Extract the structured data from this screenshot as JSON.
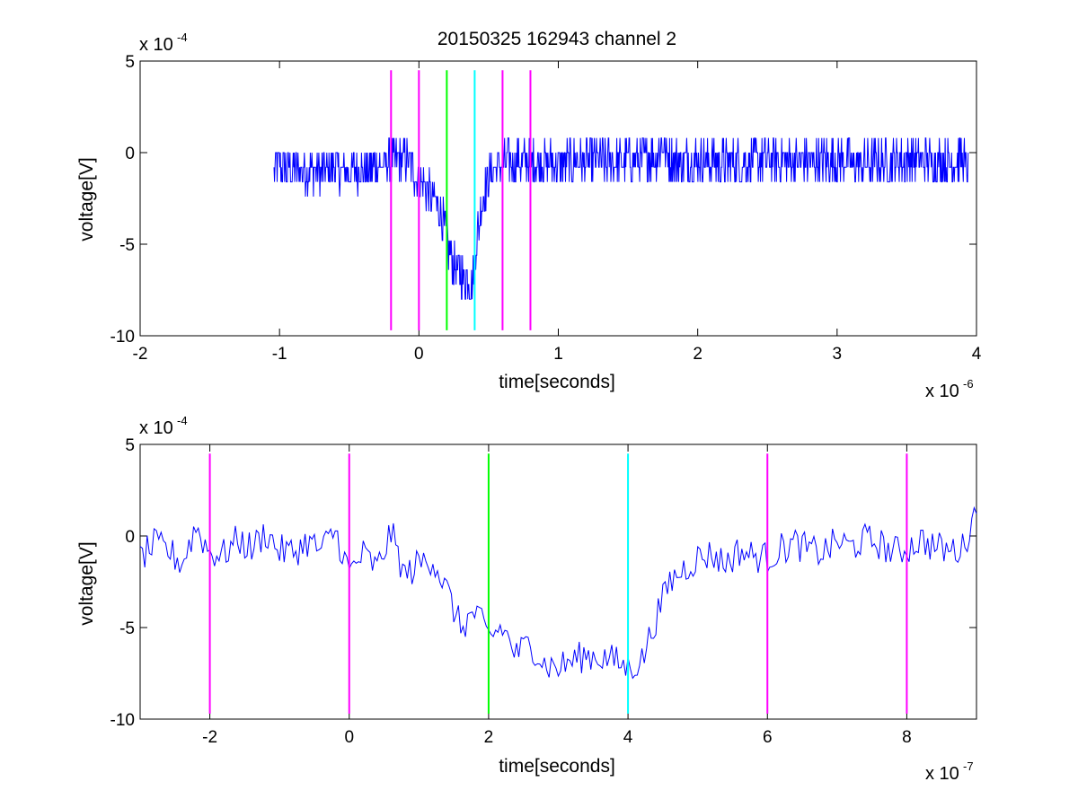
{
  "title": "20150325 162943 channel 2",
  "colors": {
    "trace": "#0000ff",
    "magenta": "#ff00ff",
    "green": "#00ff00",
    "cyan": "#00ffff",
    "axes": "#000000"
  },
  "chart_data": [
    {
      "type": "line",
      "title": "20150325 162943 channel 2",
      "xlabel": "time[seconds]",
      "ylabel": "voltage[V]",
      "x_exponent_label": "x 10",
      "x_exponent": "-6",
      "y_exponent_label": "x 10",
      "y_exponent": "-4",
      "xlim": [
        -2,
        4
      ],
      "ylim": [
        -10,
        5
      ],
      "x_ticks": [
        "-2",
        "-1",
        "0",
        "1",
        "2",
        "3",
        "4"
      ],
      "y_ticks": [
        "5",
        "0",
        "-5",
        "-10"
      ],
      "grid": false,
      "series": [
        {
          "color": "trace",
          "x": [
            -1.04,
            -1.0,
            -0.9,
            -0.8,
            -0.7,
            -0.6,
            -0.5,
            -0.4,
            -0.3,
            -0.2,
            -0.1,
            0.0,
            0.05,
            0.1,
            0.15,
            0.2,
            0.22,
            0.25,
            0.28,
            0.3,
            0.32,
            0.35,
            0.38,
            0.4,
            0.42,
            0.45,
            0.5,
            0.6,
            0.8,
            1.0,
            1.2,
            1.4,
            1.6,
            1.7,
            1.75,
            1.8,
            2.0,
            2.2,
            2.4,
            2.6,
            2.8,
            3.0,
            3.2,
            3.4,
            3.6,
            3.8,
            3.9,
            3.94
          ],
          "y": [
            -0.8,
            -0.8,
            -1.0,
            -0.9,
            -1.1,
            -0.8,
            -1.0,
            -0.9,
            -0.8,
            -0.5,
            -0.4,
            -1.4,
            -2.0,
            -2.5,
            -3.2,
            -4.5,
            -5.5,
            -6.0,
            -6.6,
            -6.5,
            -7.0,
            -6.8,
            -7.2,
            -6.0,
            -4.5,
            -3.0,
            -1.2,
            -0.5,
            -0.5,
            -0.6,
            -0.4,
            -0.5,
            -0.4,
            -0.2,
            0.5,
            -0.5,
            -0.4,
            -0.6,
            -0.5,
            -0.4,
            -0.5,
            -0.4,
            -0.6,
            -0.5,
            -0.4,
            -0.5,
            -0.3,
            -0.8
          ]
        }
      ],
      "vlines": [
        {
          "x": -0.2,
          "color": "magenta"
        },
        {
          "x": 0.0,
          "color": "magenta"
        },
        {
          "x": 0.2,
          "color": "green"
        },
        {
          "x": 0.4,
          "color": "cyan"
        },
        {
          "x": 0.6,
          "color": "magenta"
        },
        {
          "x": 0.8,
          "color": "magenta"
        }
      ],
      "vline_range": [
        -9.7,
        4.5
      ]
    },
    {
      "type": "line",
      "xlabel": "time[seconds]",
      "ylabel": "voltage[V]",
      "x_exponent_label": "x 10",
      "x_exponent": "-7",
      "y_exponent_label": "x 10",
      "y_exponent": "-4",
      "xlim": [
        -3,
        9
      ],
      "ylim": [
        -10,
        5
      ],
      "x_ticks": [
        "-2",
        "0",
        "2",
        "4",
        "6",
        "8"
      ],
      "x_tick_values": [
        -2,
        0,
        2,
        4,
        6,
        8
      ],
      "y_ticks": [
        "5",
        "0",
        "-5",
        "-10"
      ],
      "grid": false,
      "series": [
        {
          "color": "trace",
          "x": [
            -3.0,
            -2.8,
            -2.6,
            -2.4,
            -2.2,
            -2.0,
            -1.8,
            -1.6,
            -1.4,
            -1.2,
            -1.0,
            -0.8,
            -0.6,
            -0.4,
            -0.2,
            0.0,
            0.2,
            0.4,
            0.6,
            0.8,
            1.0,
            1.2,
            1.4,
            1.6,
            1.8,
            2.0,
            2.2,
            2.4,
            2.6,
            2.8,
            3.0,
            3.2,
            3.4,
            3.6,
            3.8,
            4.0,
            4.2,
            4.4,
            4.6,
            4.8,
            5.0,
            5.2,
            5.4,
            5.6,
            5.8,
            6.0,
            6.2,
            6.4,
            6.6,
            6.8,
            7.0,
            7.2,
            7.4,
            7.6,
            7.8,
            8.0,
            8.2,
            8.4,
            8.6,
            8.8,
            9.0
          ],
          "y": [
            -1.2,
            -0.5,
            -0.8,
            -1.5,
            0.5,
            -0.9,
            -1.0,
            -0.2,
            -0.7,
            0.2,
            -0.8,
            -0.9,
            -0.3,
            -0.8,
            0.3,
            -2.0,
            -1.0,
            -1.8,
            0.2,
            -2.2,
            -1.5,
            -1.2,
            -3.0,
            -5.0,
            -4.2,
            -5.5,
            -5.0,
            -6.5,
            -5.8,
            -7.0,
            -7.2,
            -6.8,
            -6.5,
            -6.6,
            -6.8,
            -7.2,
            -6.8,
            -4.5,
            -2.5,
            -1.8,
            -1.2,
            -1.0,
            -1.5,
            -0.8,
            -1.1,
            -1.2,
            -0.7,
            -0.4,
            -0.8,
            -0.9,
            -0.3,
            -0.6,
            -0.2,
            -0.4,
            -0.9,
            -0.7,
            -0.2,
            -0.6,
            -0.8,
            -0.7,
            1.5
          ]
        }
      ],
      "vlines": [
        {
          "x": -2,
          "color": "magenta"
        },
        {
          "x": 0,
          "color": "magenta"
        },
        {
          "x": 2,
          "color": "green"
        },
        {
          "x": 4,
          "color": "cyan"
        },
        {
          "x": 6,
          "color": "magenta"
        },
        {
          "x": 8,
          "color": "magenta"
        }
      ],
      "vline_range": [
        -9.7,
        4.5
      ]
    }
  ]
}
